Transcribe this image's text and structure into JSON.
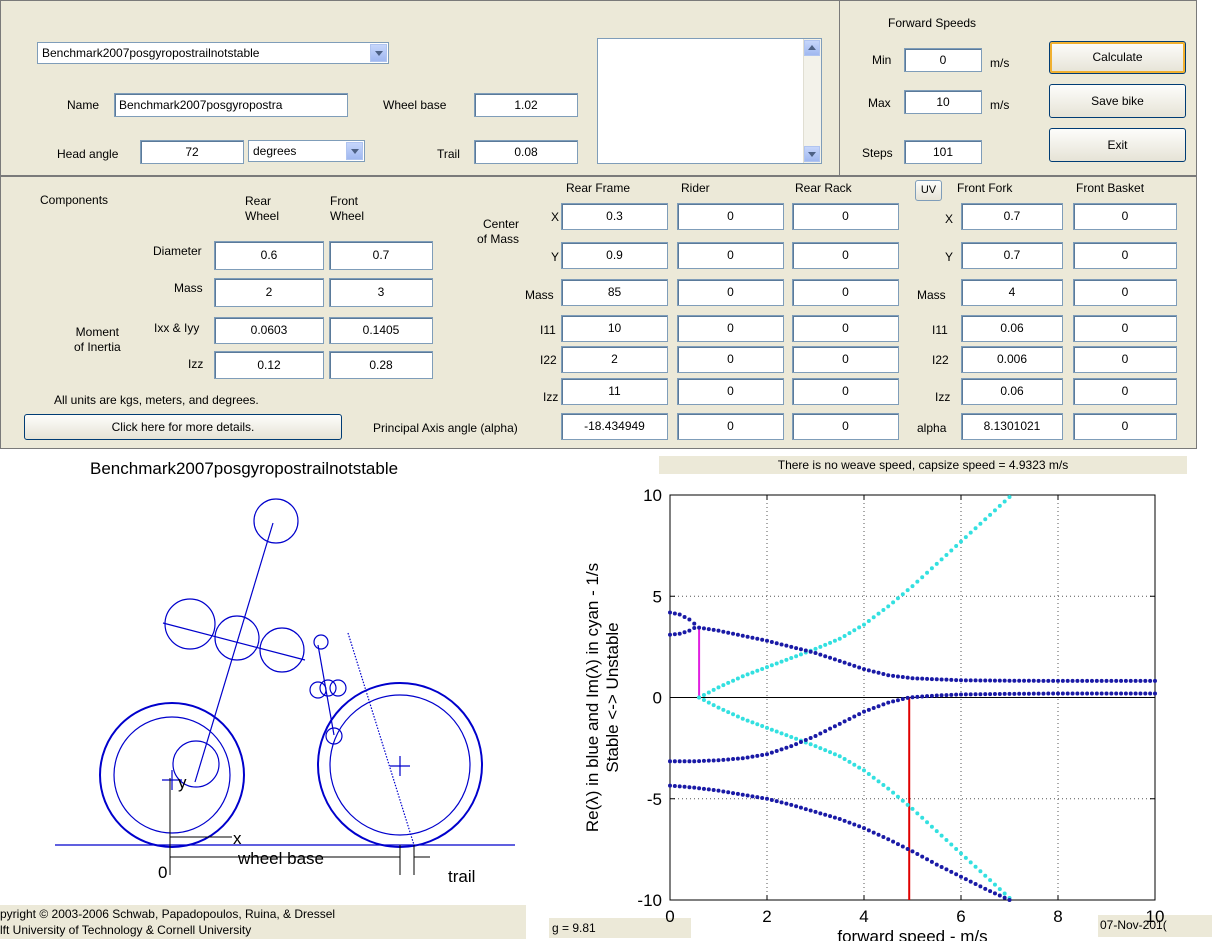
{
  "bike_select": {
    "value": "Benchmark2007posgyropostrailnotstable"
  },
  "geometry": {
    "name_label": "Name",
    "name_value": "Benchmark2007posgyropostra",
    "head_angle_label": "Head angle",
    "head_angle_value": "72",
    "angle_unit": "degrees",
    "wheel_base_label": "Wheel base",
    "wheel_base_value": "1.02",
    "trail_label": "Trail",
    "trail_value": "0.08"
  },
  "forward_speeds": {
    "title": "Forward Speeds",
    "min_label": "Min",
    "min_value": "0",
    "max_label": "Max",
    "max_value": "10",
    "steps_label": "Steps",
    "steps_value": "101",
    "unit": "m/s"
  },
  "buttons": {
    "calculate": "Calculate",
    "save": "Save bike",
    "exit": "Exit",
    "details": "Click here for more details.",
    "uv": "UV"
  },
  "components": {
    "title": "Components",
    "rear_wheel": "Rear\nWheel",
    "front_wheel": "Front\nWheel",
    "diameter_label": "Diameter",
    "diameter_rear": "0.6",
    "diameter_front": "0.7",
    "mass_label": "Mass",
    "mass_rear": "2",
    "mass_front": "3",
    "moi_label": "Moment\nof Inertia",
    "ixx_label": "Ixx & Iyy",
    "ixx_rear": "0.0603",
    "ixx_front": "0.1405",
    "izz_label": "Izz",
    "izz_rear": "0.12",
    "izz_front": "0.28",
    "units_note": "All units are kgs, meters, and degrees."
  },
  "bodies": {
    "rear_frame": "Rear Frame",
    "rider": "Rider",
    "rear_rack": "Rear Rack",
    "front_fork": "Front Fork",
    "front_basket": "Front Basket",
    "com_label": "Center\nof Mass",
    "x_label": "X",
    "y_label": "Y",
    "mass_label": "Mass",
    "i11_label": "I11",
    "i22_label": "I22",
    "izz_label": "Izz",
    "alpha_label": "Principal Axis angle (alpha)",
    "alpha_short": "alpha",
    "rear_frame_vals": {
      "x": "0.3",
      "y": "0.9",
      "mass": "85",
      "i11": "10",
      "i22": "2",
      "izz": "11",
      "alpha": "-18.434949"
    },
    "rider_vals": {
      "x": "0",
      "y": "0",
      "mass": "0",
      "i11": "0",
      "i22": "0",
      "izz": "0",
      "alpha": "0"
    },
    "rear_rack_vals": {
      "x": "0",
      "y": "0",
      "mass": "0",
      "i11": "0",
      "i22": "0",
      "izz": "0",
      "alpha": "0"
    },
    "front_fork_vals": {
      "x": "0.7",
      "y": "0.7",
      "mass": "4",
      "i11": "0.06",
      "i22": "0.006",
      "izz": "0.06",
      "alpha": "8.1301021"
    },
    "front_basket_vals": {
      "x": "0",
      "y": "0",
      "mass": "0",
      "i11": "0",
      "i22": "0",
      "izz": "0",
      "alpha": "0"
    }
  },
  "bike_drawing": {
    "title": "Benchmark2007posgyropostrailnotstable",
    "label_x": "x",
    "label_y": "y",
    "label_origin": "0",
    "label_wheel_base": "wheel base",
    "label_trail": "trail"
  },
  "footer": {
    "copyright1": "pyright © 2003-2006 Schwab, Papadopoulos, Ruina, & Dressel",
    "copyright2": "lft University of Technology & Cornell University",
    "gravity": "g = 9.81",
    "date": "07-Nov-201("
  },
  "chart_header": "There is no weave speed, capsize speed = 4.9323 m/s",
  "chart_data": {
    "type": "scatter",
    "xlabel": "forward speed - m/s",
    "ylabel_line1": "Re(λ) in blue and Im(λ) in cyan - 1/s",
    "ylabel_line2": "Stable <-> Unstable",
    "xlim": [
      0,
      10
    ],
    "ylim": [
      -10,
      10
    ],
    "x_ticks": [
      0,
      2,
      4,
      6,
      8,
      10
    ],
    "y_ticks": [
      -10,
      -5,
      0,
      5,
      10
    ],
    "grid": true,
    "weave_speed_marker": 0.6,
    "capsize_speed": 4.9323,
    "colors": {
      "re": "#1a1aa6",
      "im": "#33e0e0",
      "capsize": "#e00000",
      "weave": "#e020e0",
      "grid": "#555555"
    },
    "x": [
      0,
      0.1,
      0.2,
      0.3,
      0.4,
      0.5,
      0.6,
      0.7,
      0.8,
      0.9,
      1.0,
      1.1,
      1.2,
      1.3,
      1.4,
      1.5,
      1.6,
      1.7,
      1.8,
      1.9,
      2.0,
      2.1,
      2.2,
      2.3,
      2.4,
      2.5,
      2.6,
      2.7,
      2.8,
      2.9,
      3.0,
      3.1,
      3.2,
      3.3,
      3.4,
      3.5,
      3.6,
      3.7,
      3.8,
      3.9,
      4.0,
      4.1,
      4.2,
      4.3,
      4.4,
      4.5,
      4.6,
      4.7,
      4.8,
      4.9,
      5.0,
      5.1,
      5.2,
      5.3,
      5.4,
      5.5,
      5.6,
      5.7,
      5.8,
      5.9,
      6.0,
      6.1,
      6.2,
      6.3,
      6.4,
      6.5,
      6.6,
      6.7,
      6.8,
      6.9,
      7.0,
      7.1,
      7.2,
      7.3,
      7.4,
      7.5,
      7.6,
      7.7,
      7.8,
      7.9,
      8.0,
      8.1,
      8.2,
      8.3,
      8.4,
      8.5,
      8.6,
      8.7,
      8.8,
      8.9,
      9.0,
      9.1,
      9.2,
      9.3,
      9.4,
      9.5,
      9.6,
      9.7,
      9.8,
      9.9,
      10.0
    ],
    "re_series": [
      {
        "points": [
          [
            0,
            4.2
          ],
          [
            0.2,
            4.1
          ],
          [
            0.4,
            3.85
          ],
          [
            0.55,
            3.55
          ]
        ]
      },
      {
        "points": [
          [
            0,
            3.1
          ],
          [
            0.2,
            3.15
          ],
          [
            0.4,
            3.3
          ],
          [
            0.55,
            3.5
          ]
        ]
      },
      {
        "points": [
          [
            0.6,
            3.45
          ],
          [
            1.0,
            3.3
          ],
          [
            1.5,
            3.05
          ],
          [
            2.0,
            2.8
          ],
          [
            2.5,
            2.5
          ],
          [
            3.0,
            2.2
          ],
          [
            3.5,
            1.8
          ],
          [
            4.0,
            1.4
          ],
          [
            4.5,
            1.1
          ],
          [
            5.0,
            0.95
          ],
          [
            6.0,
            0.85
          ],
          [
            7.0,
            0.83
          ],
          [
            8.0,
            0.82
          ],
          [
            10.0,
            0.82
          ]
        ]
      },
      {
        "points": [
          [
            0,
            -3.15
          ],
          [
            0.5,
            -3.15
          ],
          [
            1.0,
            -3.1
          ],
          [
            1.5,
            -3.0
          ],
          [
            2.0,
            -2.8
          ],
          [
            2.5,
            -2.4
          ],
          [
            3.0,
            -1.9
          ],
          [
            3.5,
            -1.3
          ],
          [
            4.0,
            -0.7
          ],
          [
            4.5,
            -0.25
          ],
          [
            4.93,
            0
          ],
          [
            5.5,
            0.1
          ],
          [
            6.0,
            0.15
          ],
          [
            7.0,
            0.18
          ],
          [
            8.0,
            0.2
          ],
          [
            10.0,
            0.2
          ]
        ]
      },
      {
        "points": [
          [
            0,
            -4.35
          ],
          [
            0.5,
            -4.45
          ],
          [
            1.0,
            -4.6
          ],
          [
            1.5,
            -4.8
          ],
          [
            2.0,
            -5.0
          ],
          [
            2.5,
            -5.3
          ],
          [
            3.0,
            -5.65
          ],
          [
            3.5,
            -6.0
          ],
          [
            4.0,
            -6.45
          ],
          [
            4.5,
            -7.0
          ],
          [
            5.0,
            -7.6
          ],
          [
            5.5,
            -8.25
          ],
          [
            6.0,
            -8.85
          ],
          [
            6.5,
            -9.45
          ],
          [
            7.0,
            -10.0
          ]
        ]
      }
    ],
    "im_series": [
      {
        "points": [
          [
            0.6,
            0
          ],
          [
            1.0,
            0.5
          ],
          [
            1.5,
            1.05
          ],
          [
            2.0,
            1.5
          ],
          [
            2.5,
            1.95
          ],
          [
            3.0,
            2.4
          ],
          [
            3.5,
            2.9
          ],
          [
            4.0,
            3.6
          ],
          [
            4.5,
            4.5
          ],
          [
            5.0,
            5.5
          ],
          [
            5.5,
            6.6
          ],
          [
            6.0,
            7.7
          ],
          [
            6.5,
            8.8
          ],
          [
            7.0,
            9.9
          ]
        ]
      },
      {
        "points": [
          [
            0.6,
            0
          ],
          [
            1.0,
            -0.5
          ],
          [
            1.5,
            -1.05
          ],
          [
            2.0,
            -1.5
          ],
          [
            2.5,
            -1.95
          ],
          [
            3.0,
            -2.4
          ],
          [
            3.5,
            -2.9
          ],
          [
            4.0,
            -3.6
          ],
          [
            4.5,
            -4.5
          ],
          [
            5.0,
            -5.5
          ],
          [
            5.5,
            -6.6
          ],
          [
            6.0,
            -7.7
          ],
          [
            6.5,
            -8.8
          ],
          [
            7.0,
            -9.9
          ]
        ]
      }
    ]
  }
}
